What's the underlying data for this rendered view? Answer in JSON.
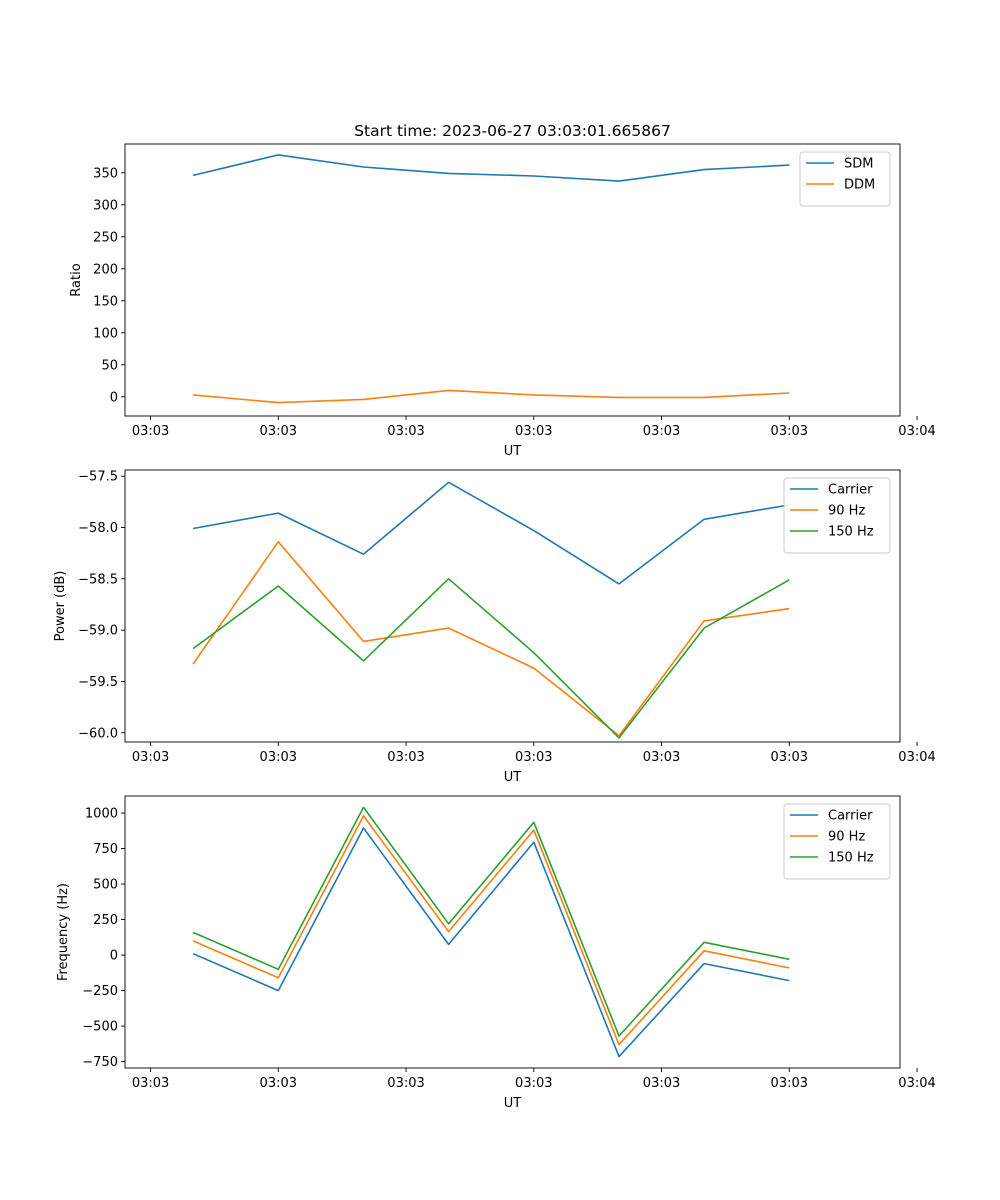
{
  "figure": {
    "title": "Start time: 2023-06-27 03:03:01.665867"
  },
  "chart_data": [
    {
      "type": "line",
      "xlabel": "UT",
      "ylabel": "Ratio",
      "x": [
        1,
        2,
        3,
        4,
        5,
        6,
        7,
        8
      ],
      "xlim": [
        0.2,
        9.3
      ],
      "xticks": [
        0.5,
        2.0,
        3.5,
        5.0,
        6.5,
        8.0,
        9.5
      ],
      "xtick_labels": [
        "03:03",
        "03:03",
        "03:03",
        "03:03",
        "03:03",
        "03:03",
        "03:04"
      ],
      "ylim": [
        -30,
        395
      ],
      "yticks": [
        0,
        50,
        100,
        150,
        200,
        250,
        300,
        350
      ],
      "ytick_labels": [
        "0",
        "50",
        "100",
        "150",
        "200",
        "250",
        "300",
        "350"
      ],
      "legend": "top-right",
      "series": [
        {
          "name": "SDM",
          "color": "#1f77b4",
          "values": [
            346,
            378,
            359,
            349,
            345,
            337,
            355,
            362
          ]
        },
        {
          "name": "DDM",
          "color": "#ff7f0e",
          "values": [
            3,
            -9,
            -4,
            10,
            3,
            -1,
            -1,
            6
          ]
        }
      ]
    },
    {
      "type": "line",
      "xlabel": "UT",
      "ylabel": "Power (dB)",
      "x": [
        1,
        2,
        3,
        4,
        5,
        6,
        7,
        8
      ],
      "xlim": [
        0.2,
        9.3
      ],
      "xticks": [
        0.5,
        2.0,
        3.5,
        5.0,
        6.5,
        8.0,
        9.5
      ],
      "xtick_labels": [
        "03:03",
        "03:03",
        "03:03",
        "03:03",
        "03:03",
        "03:03",
        "03:04"
      ],
      "ylim": [
        -60.09,
        -57.44
      ],
      "yticks": [
        -60.0,
        -59.5,
        -59.0,
        -58.5,
        -58.0,
        -57.5
      ],
      "ytick_labels": [
        "−60.0",
        "−59.5",
        "−59.0",
        "−58.5",
        "−58.0",
        "−57.5"
      ],
      "legend": "top-right",
      "series": [
        {
          "name": "Carrier",
          "color": "#1f77b4",
          "values": [
            -58.01,
            -57.86,
            -58.26,
            -57.56,
            -58.03,
            -58.55,
            -57.92,
            -57.78
          ]
        },
        {
          "name": "90 Hz",
          "color": "#ff7f0e",
          "values": [
            -59.33,
            -58.14,
            -59.11,
            -58.98,
            -59.37,
            -60.03,
            -58.91,
            -58.79
          ]
        },
        {
          "name": "150 Hz",
          "color": "#2ca02c",
          "values": [
            -59.18,
            -58.57,
            -59.3,
            -58.5,
            -59.22,
            -60.05,
            -58.98,
            -58.51
          ]
        }
      ]
    },
    {
      "type": "line",
      "xlabel": "UT",
      "ylabel": "Frequency (Hz)",
      "x": [
        1,
        2,
        3,
        4,
        5,
        6,
        7,
        8
      ],
      "xlim": [
        0.2,
        9.3
      ],
      "xticks": [
        0.5,
        2.0,
        3.5,
        5.0,
        6.5,
        8.0,
        9.5
      ],
      "xtick_labels": [
        "03:03",
        "03:03",
        "03:03",
        "03:03",
        "03:03",
        "03:03",
        "03:04"
      ],
      "ylim": [
        -795,
        1120
      ],
      "yticks": [
        -750,
        -500,
        -250,
        0,
        250,
        500,
        750,
        1000
      ],
      "ytick_labels": [
        "−750",
        "−500",
        "−250",
        "0",
        "250",
        "500",
        "750",
        "1000"
      ],
      "legend": "top-right",
      "series": [
        {
          "name": "Carrier",
          "color": "#1f77b4",
          "values": [
            10,
            -250,
            895,
            75,
            795,
            -715,
            -60,
            -180
          ]
        },
        {
          "name": "90 Hz",
          "color": "#ff7f0e",
          "values": [
            100,
            -160,
            980,
            165,
            880,
            -630,
            30,
            -90
          ]
        },
        {
          "name": "150 Hz",
          "color": "#2ca02c",
          "values": [
            160,
            -100,
            1040,
            220,
            935,
            -570,
            90,
            -30
          ]
        }
      ]
    }
  ]
}
